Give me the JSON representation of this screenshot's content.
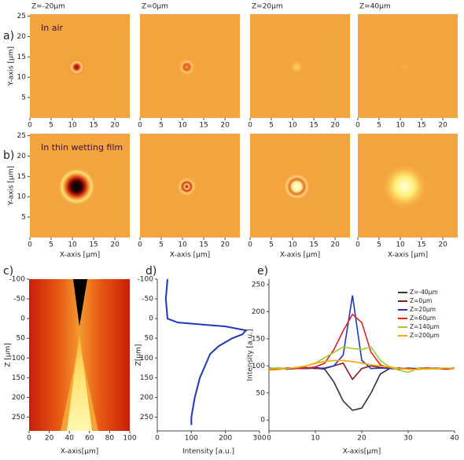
{
  "chart_data": [
    {
      "type": "image",
      "panel": "a)",
      "column_titles": [
        "Z=-20µm",
        "Z=0µm",
        "Z=20µm",
        "Z=40µm"
      ],
      "annotation": "In air",
      "ylabel": "Y-axis [µm]",
      "xlim": [
        0,
        23.5
      ],
      "ylim": [
        0,
        25.5
      ],
      "xticks": [
        0,
        5,
        10,
        15,
        20
      ],
      "yticks": [
        5,
        10,
        15,
        20,
        25
      ]
    },
    {
      "type": "image",
      "panel": "b)",
      "annotation": "In thin wetting film",
      "xlabel": "X-axis [µm]",
      "ylabel": "Y-axis [µm]",
      "xlim": [
        0,
        23.5
      ],
      "ylim": [
        0,
        25.5
      ],
      "xticks": [
        0,
        5,
        10,
        15,
        20
      ],
      "yticks": [
        5,
        10,
        15,
        20,
        25
      ]
    },
    {
      "type": "image",
      "panel": "c)",
      "xlabel": "X-axis[µm]",
      "ylabel": "Z [µm]",
      "xlim": [
        0,
        100
      ],
      "ylim": [
        -100,
        285
      ],
      "xticks": [
        0,
        20,
        40,
        60,
        80,
        100
      ],
      "yticks": [
        -100,
        -50,
        0,
        50,
        100,
        150,
        200,
        250
      ]
    },
    {
      "type": "profile",
      "panel": "d)",
      "xlabel": "Intensity [a.u.]",
      "ylabel": "Z[µm]",
      "xlim": [
        0,
        300
      ],
      "ylim": [
        -100,
        285
      ],
      "xticks": [
        0,
        100,
        200,
        300
      ],
      "yticks": [
        -100,
        -50,
        0,
        50,
        100,
        150,
        200,
        250
      ],
      "color": "#1f36c0",
      "z": [
        -100,
        -50,
        0,
        10,
        20,
        30,
        40,
        50,
        70,
        90,
        100,
        150,
        200,
        250,
        270
      ],
      "values": [
        30,
        25,
        30,
        60,
        200,
        260,
        250,
        220,
        180,
        155,
        150,
        125,
        110,
        100,
        100
      ]
    },
    {
      "type": "line",
      "panel": "e)",
      "xlabel": "X-axis[µm]",
      "ylabel": "Intensity [a.u.]",
      "xlim": [
        0,
        40
      ],
      "ylim": [
        -20,
        260
      ],
      "xticks": [
        0,
        10,
        20,
        30,
        40
      ],
      "yticks": [
        0,
        50,
        100,
        150,
        200,
        250
      ],
      "x": [
        0,
        2,
        4,
        6,
        8,
        10,
        12,
        14,
        16,
        18,
        20,
        22,
        24,
        26,
        28,
        30,
        32,
        34,
        36,
        38,
        40
      ],
      "series": [
        {
          "name": "Z=-40µm",
          "color": "#333333",
          "values": [
            95,
            96,
            94,
            95,
            95,
            96,
            94,
            70,
            35,
            18,
            22,
            50,
            85,
            95,
            96,
            94,
            95,
            96,
            95,
            95,
            95
          ]
        },
        {
          "name": "Z=0µm",
          "color": "#8b1a1a",
          "values": [
            95,
            94,
            96,
            95,
            97,
            95,
            96,
            100,
            105,
            75,
            95,
            100,
            97,
            95,
            96,
            94,
            95,
            96,
            95,
            94,
            95
          ]
        },
        {
          "name": "Z=20µm",
          "color": "#1f36c0",
          "values": [
            96,
            95,
            94,
            96,
            95,
            97,
            95,
            100,
            120,
            230,
            110,
            95,
            96,
            95,
            94,
            96,
            95,
            94,
            96,
            95,
            96
          ]
        },
        {
          "name": "Z=60µm",
          "color": "#e02020",
          "values": [
            94,
            95,
            96,
            95,
            96,
            98,
            105,
            130,
            165,
            195,
            180,
            125,
            102,
            96,
            95,
            95,
            94,
            96,
            95,
            95,
            95
          ]
        },
        {
          "name": "Z=140µm",
          "color": "#9acd32",
          "values": [
            95,
            96,
            95,
            97,
            100,
            105,
            115,
            125,
            135,
            132,
            130,
            135,
            110,
            98,
            92,
            88,
            95,
            94,
            95,
            96,
            95
          ]
        },
        {
          "name": "Z=200µm",
          "color": "#ffa500",
          "values": [
            92,
            93,
            95,
            97,
            100,
            105,
            108,
            110,
            110,
            108,
            105,
            102,
            100,
            98,
            95,
            94,
            93,
            95,
            94,
            96,
            95
          ]
        }
      ]
    }
  ]
}
